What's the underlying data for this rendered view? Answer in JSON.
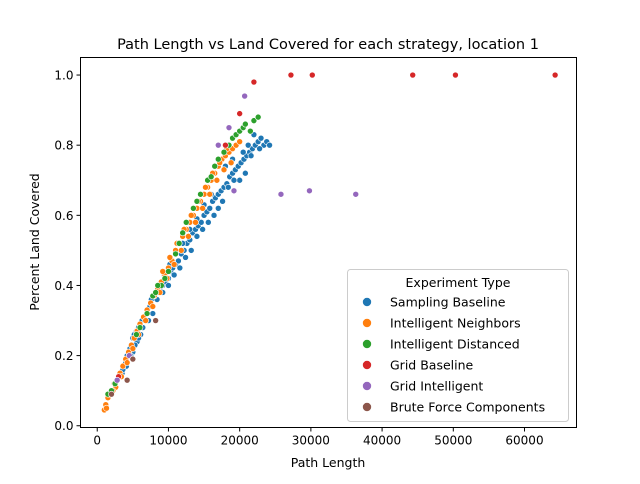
{
  "chart_data": {
    "type": "scatter",
    "title": "Path Length vs Land Covered for each strategy, location 1",
    "xlabel": "Path Length",
    "ylabel": "Percent Land Covered",
    "xlim": [
      -2350,
      67300
    ],
    "ylim": [
      -0.005,
      1.05
    ],
    "xticks": [
      0,
      10000,
      20000,
      30000,
      40000,
      50000,
      60000
    ],
    "xtick_labels": [
      "0",
      "10000",
      "20000",
      "30000",
      "40000",
      "50000",
      "60000"
    ],
    "yticks": [
      0.0,
      0.2,
      0.4,
      0.6,
      0.8,
      1.0
    ],
    "ytick_labels": [
      "0.0",
      "0.2",
      "0.4",
      "0.6",
      "0.8",
      "1.0"
    ],
    "grid": false,
    "legend": {
      "title": "Experiment Type",
      "placement": "lower-right"
    },
    "series": [
      {
        "name": "Sampling Baseline",
        "color": "#1f77b4",
        "points": [
          [
            3000,
            0.14
          ],
          [
            3500,
            0.15
          ],
          [
            3800,
            0.17
          ],
          [
            4000,
            0.18
          ],
          [
            4200,
            0.2
          ],
          [
            4400,
            0.21
          ],
          [
            4600,
            0.22
          ],
          [
            4800,
            0.23
          ],
          [
            5000,
            0.25
          ],
          [
            5200,
            0.26
          ],
          [
            5500,
            0.27
          ],
          [
            5800,
            0.28
          ],
          [
            6000,
            0.29
          ],
          [
            6300,
            0.3
          ],
          [
            6600,
            0.31
          ],
          [
            7000,
            0.33
          ],
          [
            7400,
            0.34
          ],
          [
            5000,
            0.21
          ],
          [
            5600,
            0.24
          ],
          [
            6100,
            0.26
          ],
          [
            6800,
            0.3
          ],
          [
            7600,
            0.36
          ],
          [
            8000,
            0.37
          ],
          [
            8400,
            0.38
          ],
          [
            8800,
            0.39
          ],
          [
            9200,
            0.4
          ],
          [
            9600,
            0.41
          ],
          [
            10000,
            0.42
          ],
          [
            10300,
            0.44
          ],
          [
            10600,
            0.45
          ],
          [
            11000,
            0.46
          ],
          [
            11400,
            0.47
          ],
          [
            11800,
            0.49
          ],
          [
            12200,
            0.5
          ],
          [
            12600,
            0.52
          ],
          [
            13000,
            0.53
          ],
          [
            13400,
            0.55
          ],
          [
            13800,
            0.56
          ],
          [
            14200,
            0.57
          ],
          [
            14600,
            0.58
          ],
          [
            15000,
            0.6
          ],
          [
            15400,
            0.61
          ],
          [
            15800,
            0.62
          ],
          [
            16200,
            0.64
          ],
          [
            16600,
            0.65
          ],
          [
            17000,
            0.66
          ],
          [
            17400,
            0.67
          ],
          [
            17800,
            0.68
          ],
          [
            18200,
            0.69
          ],
          [
            18600,
            0.71
          ],
          [
            19000,
            0.72
          ],
          [
            19400,
            0.73
          ],
          [
            19800,
            0.74
          ],
          [
            20200,
            0.75
          ],
          [
            20600,
            0.76
          ],
          [
            21000,
            0.77
          ],
          [
            21400,
            0.78
          ],
          [
            21800,
            0.79
          ],
          [
            22200,
            0.8
          ],
          [
            22600,
            0.81
          ],
          [
            23000,
            0.82
          ],
          [
            23400,
            0.8
          ],
          [
            23800,
            0.81
          ],
          [
            24200,
            0.8
          ],
          [
            22000,
            0.83
          ],
          [
            21600,
            0.77
          ],
          [
            20800,
            0.72
          ],
          [
            20000,
            0.7
          ],
          [
            19200,
            0.7
          ],
          [
            18400,
            0.68
          ],
          [
            17600,
            0.64
          ],
          [
            17000,
            0.62
          ],
          [
            16400,
            0.6
          ],
          [
            15600,
            0.58
          ],
          [
            14800,
            0.56
          ],
          [
            14000,
            0.54
          ],
          [
            13200,
            0.5
          ],
          [
            12400,
            0.48
          ],
          [
            11600,
            0.45
          ],
          [
            10800,
            0.43
          ],
          [
            10000,
            0.4
          ],
          [
            9200,
            0.38
          ],
          [
            8400,
            0.36
          ],
          [
            7800,
            0.32
          ],
          [
            7200,
            0.3
          ],
          [
            6400,
            0.28
          ],
          [
            5800,
            0.25
          ],
          [
            5300,
            0.23
          ],
          [
            4700,
            0.2
          ],
          [
            4100,
            0.17
          ],
          [
            3600,
            0.16
          ],
          [
            18000,
            0.74
          ],
          [
            19000,
            0.76
          ],
          [
            20500,
            0.78
          ],
          [
            21200,
            0.8
          ],
          [
            22800,
            0.79
          ],
          [
            16000,
            0.66
          ],
          [
            15000,
            0.63
          ],
          [
            14000,
            0.59
          ],
          [
            13000,
            0.56
          ],
          [
            12000,
            0.52
          ],
          [
            11000,
            0.49
          ],
          [
            10200,
            0.46
          ],
          [
            9400,
            0.43
          ],
          [
            8600,
            0.4
          ]
        ]
      },
      {
        "name": "Intelligent Neighbors",
        "color": "#ff7f0e",
        "points": [
          [
            1000,
            0.045
          ],
          [
            1200,
            0.06
          ],
          [
            1500,
            0.08
          ],
          [
            2000,
            0.1
          ],
          [
            2400,
            0.12
          ],
          [
            2800,
            0.13
          ],
          [
            3200,
            0.15
          ],
          [
            3600,
            0.17
          ],
          [
            4000,
            0.19
          ],
          [
            4400,
            0.21
          ],
          [
            4800,
            0.23
          ],
          [
            5200,
            0.25
          ],
          [
            5600,
            0.27
          ],
          [
            6000,
            0.29
          ],
          [
            6500,
            0.31
          ],
          [
            7000,
            0.33
          ],
          [
            7500,
            0.35
          ],
          [
            8000,
            0.37
          ],
          [
            8500,
            0.39
          ],
          [
            9000,
            0.41
          ],
          [
            9500,
            0.43
          ],
          [
            10000,
            0.45
          ],
          [
            10500,
            0.47
          ],
          [
            11000,
            0.5
          ],
          [
            11500,
            0.52
          ],
          [
            12000,
            0.54
          ],
          [
            12500,
            0.56
          ],
          [
            13000,
            0.58
          ],
          [
            13500,
            0.6
          ],
          [
            14000,
            0.62
          ],
          [
            14500,
            0.64
          ],
          [
            15000,
            0.66
          ],
          [
            15500,
            0.68
          ],
          [
            16000,
            0.7
          ],
          [
            16500,
            0.72
          ],
          [
            17000,
            0.74
          ],
          [
            17500,
            0.76
          ],
          [
            18000,
            0.77
          ],
          [
            18500,
            0.78
          ],
          [
            19000,
            0.79
          ],
          [
            19500,
            0.8
          ],
          [
            20000,
            0.81
          ],
          [
            1800,
            0.09
          ],
          [
            2600,
            0.11
          ],
          [
            3400,
            0.14
          ],
          [
            4200,
            0.18
          ],
          [
            5000,
            0.22
          ],
          [
            5800,
            0.26
          ],
          [
            6800,
            0.3
          ],
          [
            7800,
            0.34
          ],
          [
            8800,
            0.38
          ],
          [
            9800,
            0.42
          ],
          [
            10800,
            0.46
          ],
          [
            11800,
            0.5
          ],
          [
            12800,
            0.54
          ],
          [
            13800,
            0.58
          ],
          [
            14800,
            0.62
          ],
          [
            15800,
            0.66
          ],
          [
            16800,
            0.7
          ],
          [
            17800,
            0.73
          ],
          [
            18800,
            0.75
          ],
          [
            1300,
            0.05
          ],
          [
            2200,
            0.1
          ],
          [
            9200,
            0.44
          ],
          [
            10200,
            0.48
          ],
          [
            11200,
            0.52
          ],
          [
            12200,
            0.56
          ],
          [
            13200,
            0.6
          ],
          [
            14200,
            0.64
          ],
          [
            15200,
            0.68
          ],
          [
            16200,
            0.72
          ],
          [
            17200,
            0.75
          ],
          [
            18200,
            0.79
          ]
        ]
      },
      {
        "name": "Intelligent Distanced",
        "color": "#2ca02c",
        "points": [
          [
            1500,
            0.09
          ],
          [
            2000,
            0.1
          ],
          [
            2500,
            0.12
          ],
          [
            3000,
            0.14
          ],
          [
            5500,
            0.26
          ],
          [
            6000,
            0.28
          ],
          [
            7000,
            0.32
          ],
          [
            7800,
            0.37
          ],
          [
            8200,
            0.38
          ],
          [
            9000,
            0.4
          ],
          [
            10000,
            0.44
          ],
          [
            11000,
            0.49
          ],
          [
            12000,
            0.55
          ],
          [
            12500,
            0.58
          ],
          [
            13500,
            0.62
          ],
          [
            14500,
            0.66
          ],
          [
            15500,
            0.7
          ],
          [
            16000,
            0.71
          ],
          [
            17000,
            0.76
          ],
          [
            17800,
            0.78
          ],
          [
            18500,
            0.8
          ],
          [
            19000,
            0.82
          ],
          [
            19500,
            0.83
          ],
          [
            20000,
            0.84
          ],
          [
            20500,
            0.85
          ],
          [
            20800,
            0.86
          ],
          [
            21500,
            0.84
          ],
          [
            22000,
            0.87
          ],
          [
            22600,
            0.88
          ],
          [
            16500,
            0.74
          ],
          [
            14000,
            0.64
          ],
          [
            11500,
            0.52
          ],
          [
            9500,
            0.42
          ],
          [
            8500,
            0.4
          ]
        ]
      },
      {
        "name": "Grid Baseline",
        "color": "#d62728",
        "points": [
          [
            3000,
            0.14
          ],
          [
            18000,
            0.8
          ],
          [
            20000,
            0.89
          ],
          [
            22000,
            0.98
          ],
          [
            27200,
            1.0
          ],
          [
            30200,
            1.0
          ],
          [
            44300,
            1.0
          ],
          [
            50300,
            1.0
          ],
          [
            64300,
            1.0
          ]
        ]
      },
      {
        "name": "Grid Intelligent",
        "color": "#9467bd",
        "points": [
          [
            2800,
            0.13
          ],
          [
            4500,
            0.2
          ],
          [
            17000,
            0.8
          ],
          [
            18500,
            0.85
          ],
          [
            19200,
            0.67
          ],
          [
            20700,
            0.94
          ],
          [
            25800,
            0.66
          ],
          [
            29800,
            0.67
          ],
          [
            36300,
            0.66
          ]
        ]
      },
      {
        "name": "Brute Force Components",
        "color": "#8c564b",
        "points": [
          [
            2000,
            0.09
          ],
          [
            4200,
            0.13
          ],
          [
            5000,
            0.19
          ],
          [
            8200,
            0.3
          ]
        ]
      }
    ]
  }
}
